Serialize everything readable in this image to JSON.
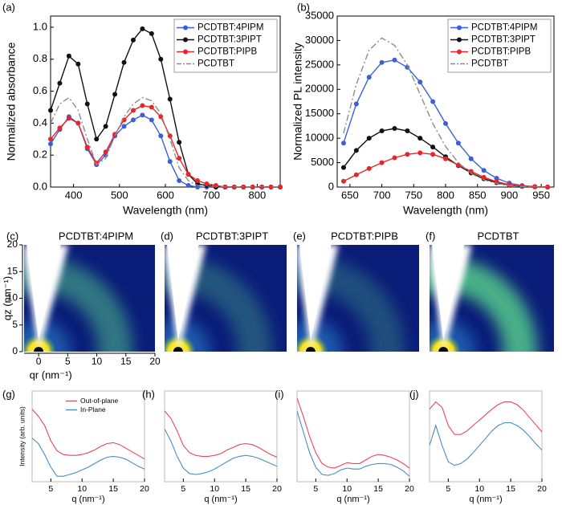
{
  "chart_data": [
    {
      "type": "line",
      "panel_label": "(a)",
      "x_label": "Wavelength (nm)",
      "y_label": "Normalized absorbance",
      "x": [
        350,
        370,
        390,
        410,
        430,
        450,
        470,
        490,
        510,
        530,
        550,
        570,
        590,
        610,
        630,
        650,
        670,
        690,
        710,
        730,
        750,
        770,
        790,
        810,
        830,
        850
      ],
      "xlim": [
        350,
        850
      ],
      "ylim": [
        0,
        1.07
      ],
      "xticks": [
        400,
        500,
        600,
        700,
        800
      ],
      "yticks": [
        {
          "value": 0,
          "label": "0.0"
        },
        {
          "value": 0.2,
          "label": "0.2"
        },
        {
          "value": 0.4,
          "label": "0.4"
        },
        {
          "value": 0.6,
          "label": "0.6"
        },
        {
          "value": 0.8,
          "label": "0.8"
        },
        {
          "value": 1,
          "label": "1.0"
        }
      ],
      "legend": "upper right",
      "series": [
        {
          "name": "PCDTBT:4PIPM",
          "color": "#3a5fd9",
          "marker": "circle",
          "values": [
            0.27,
            0.36,
            0.44,
            0.4,
            0.24,
            0.14,
            0.2,
            0.32,
            0.38,
            0.42,
            0.45,
            0.42,
            0.32,
            0.16,
            0.04,
            0.01,
            0,
            0,
            0,
            0,
            0,
            0,
            0,
            0,
            0,
            0
          ]
        },
        {
          "name": "PCDTBT:3PIPT",
          "color": "#111111",
          "marker": "circle",
          "values": [
            0.48,
            0.65,
            0.82,
            0.77,
            0.52,
            0.3,
            0.38,
            0.58,
            0.78,
            0.92,
            0.99,
            0.96,
            0.8,
            0.55,
            0.28,
            0.08,
            0.02,
            0.01,
            0,
            0,
            0,
            0,
            0,
            0,
            0,
            0
          ]
        },
        {
          "name": "PCDTBT:PIPB",
          "color": "#e8262a",
          "marker": "circle",
          "values": [
            0.3,
            0.37,
            0.43,
            0.4,
            0.25,
            0.15,
            0.22,
            0.33,
            0.42,
            0.48,
            0.51,
            0.5,
            0.44,
            0.32,
            0.18,
            0.08,
            0.04,
            0.02,
            0.01,
            0,
            0,
            0,
            0,
            0,
            0,
            0
          ]
        },
        {
          "name": "PCDTBT",
          "color": "#8c8c8c",
          "marker": "none",
          "line_style": "dashdot",
          "values": [
            0.4,
            0.52,
            0.56,
            0.48,
            0.3,
            0.14,
            0.18,
            0.32,
            0.44,
            0.52,
            0.56,
            0.54,
            0.46,
            0.3,
            0.12,
            0.04,
            0.01,
            0,
            0,
            0,
            0,
            0,
            0,
            0,
            0,
            0
          ]
        }
      ]
    },
    {
      "type": "line",
      "panel_label": "(b)",
      "x_label": "Wavelength (nm)",
      "y_label": "Normalized PL intensity",
      "x": [
        640,
        660,
        680,
        700,
        720,
        740,
        760,
        780,
        800,
        820,
        840,
        860,
        880,
        900,
        920,
        940,
        960
      ],
      "xlim": [
        630,
        970
      ],
      "ylim": [
        0,
        35000
      ],
      "xticks": [
        650,
        700,
        750,
        800,
        850,
        900,
        950
      ],
      "yticks": [
        0,
        5000,
        10000,
        15000,
        20000,
        25000,
        30000,
        35000
      ],
      "legend": "upper right",
      "series": [
        {
          "name": "PCDTBT:4PIPM",
          "color": "#3a5fd9",
          "marker": "circle",
          "values": [
            9000,
            17000,
            22500,
            25500,
            26000,
            24500,
            21500,
            17500,
            13000,
            9000,
            5800,
            3400,
            1800,
            800,
            300,
            100,
            0
          ]
        },
        {
          "name": "PCDTBT:3PIPT",
          "color": "#111111",
          "marker": "circle",
          "values": [
            4000,
            7500,
            10000,
            11500,
            12000,
            11500,
            10000,
            8200,
            6200,
            4400,
            2900,
            1700,
            900,
            400,
            150,
            50,
            0
          ]
        },
        {
          "name": "PCDTBT:PIPB",
          "color": "#e8262a",
          "marker": "circle",
          "values": [
            1200,
            2500,
            3800,
            5000,
            6000,
            6700,
            7000,
            6700,
            5800,
            4500,
            3200,
            2000,
            1100,
            500,
            200,
            50,
            0
          ]
        },
        {
          "name": "PCDTBT",
          "color": "#8c8c8c",
          "marker": "none",
          "line_style": "dashdot",
          "values": [
            11000,
            21000,
            28000,
            30500,
            29000,
            25000,
            19000,
            13000,
            8300,
            5000,
            2800,
            1500,
            700,
            300,
            100,
            0,
            0
          ]
        }
      ]
    },
    {
      "type": "heatmap",
      "panel_label": "(c)",
      "title": "PCDTBT:4PIPM",
      "x_label": "qr (nm⁻¹)",
      "y_label": "qz (nm⁻¹)",
      "xlim": [
        -2.5,
        20
      ],
      "ylim": [
        0,
        20
      ],
      "xticks": [
        0,
        5,
        10,
        15,
        20
      ],
      "yticks": [
        0,
        5,
        10,
        15,
        20
      ]
    },
    {
      "type": "heatmap",
      "panel_label": "(d)",
      "title": "PCDTBT:3PIPT"
    },
    {
      "type": "heatmap",
      "panel_label": "(e)",
      "title": "PCDTBT:PIPB"
    },
    {
      "type": "heatmap",
      "panel_label": "(f)",
      "title": "PCDTBT"
    },
    {
      "type": "line",
      "panel_label": "(g)",
      "x_label": "q (nm⁻¹)",
      "y_label": "Intensity (arb. units)",
      "x": [
        2,
        3,
        4,
        5,
        6,
        7,
        8,
        9,
        10,
        11,
        12,
        13,
        14,
        15,
        16,
        17,
        18,
        19,
        20
      ],
      "xlim": [
        2,
        20
      ],
      "ylim": [
        0,
        1
      ],
      "xticks": [
        5,
        10,
        15,
        20
      ],
      "legend": "upper center",
      "series": [
        {
          "name": "Out-of-plane",
          "color": "#e8455e",
          "values": [
            0.8,
            0.72,
            0.62,
            0.45,
            0.34,
            0.3,
            0.29,
            0.29,
            0.3,
            0.32,
            0.35,
            0.39,
            0.42,
            0.43,
            0.41,
            0.37,
            0.33,
            0.29,
            0.25
          ]
        },
        {
          "name": "In-Plane",
          "color": "#4a8cc4",
          "values": [
            0.48,
            0.42,
            0.3,
            0.16,
            0.06,
            0.06,
            0.08,
            0.1,
            0.13,
            0.16,
            0.2,
            0.24,
            0.27,
            0.28,
            0.27,
            0.25,
            0.21,
            0.17,
            0.14
          ]
        }
      ]
    },
    {
      "type": "line",
      "panel_label": "(h)",
      "x_label": "q (nm⁻¹)",
      "x": [
        2,
        3,
        4,
        5,
        6,
        7,
        8,
        9,
        10,
        11,
        12,
        13,
        14,
        15,
        16,
        17,
        18,
        19,
        20
      ],
      "xlim": [
        2,
        20
      ],
      "ylim": [
        0,
        1
      ],
      "xticks": [
        5,
        10,
        15,
        20
      ],
      "series": [
        {
          "color": "#e8455e",
          "values": [
            0.78,
            0.7,
            0.56,
            0.4,
            0.32,
            0.29,
            0.28,
            0.28,
            0.29,
            0.31,
            0.35,
            0.38,
            0.41,
            0.42,
            0.41,
            0.38,
            0.34,
            0.3,
            0.27
          ]
        },
        {
          "color": "#4a8cc4",
          "values": [
            0.58,
            0.45,
            0.28,
            0.15,
            0.09,
            0.08,
            0.09,
            0.11,
            0.14,
            0.18,
            0.22,
            0.26,
            0.28,
            0.29,
            0.28,
            0.26,
            0.23,
            0.2,
            0.17
          ]
        }
      ]
    },
    {
      "type": "line",
      "panel_label": "(i)",
      "x_label": "q (nm⁻¹)",
      "x": [
        2,
        3,
        4,
        5,
        6,
        7,
        8,
        9,
        10,
        11,
        12,
        13,
        14,
        15,
        16,
        17,
        18,
        19,
        20
      ],
      "xlim": [
        2,
        20
      ],
      "ylim": [
        0,
        1
      ],
      "xticks": [
        5,
        10,
        15,
        20
      ],
      "series": [
        {
          "color": "#e8455e",
          "values": [
            0.92,
            0.72,
            0.5,
            0.32,
            0.2,
            0.16,
            0.15,
            0.18,
            0.21,
            0.2,
            0.2,
            0.24,
            0.28,
            0.3,
            0.29,
            0.27,
            0.24,
            0.2,
            0.15
          ]
        },
        {
          "color": "#4a8cc4",
          "values": [
            0.78,
            0.55,
            0.32,
            0.16,
            0.08,
            0.07,
            0.09,
            0.13,
            0.15,
            0.14,
            0.14,
            0.17,
            0.19,
            0.2,
            0.2,
            0.19,
            0.16,
            0.12,
            0.06
          ]
        }
      ]
    },
    {
      "type": "line",
      "panel_label": "(j)",
      "x_label": "q (nm⁻¹)",
      "x": [
        2,
        3,
        4,
        5,
        6,
        7,
        8,
        9,
        10,
        11,
        12,
        13,
        14,
        15,
        16,
        17,
        18,
        19,
        20
      ],
      "xlim": [
        2,
        20
      ],
      "ylim": [
        0,
        1
      ],
      "xticks": [
        5,
        10,
        15,
        20
      ],
      "series": [
        {
          "color": "#e8455e",
          "values": [
            0.8,
            0.88,
            0.82,
            0.62,
            0.52,
            0.52,
            0.56,
            0.62,
            0.68,
            0.74,
            0.8,
            0.85,
            0.88,
            0.88,
            0.85,
            0.79,
            0.71,
            0.63,
            0.55
          ]
        },
        {
          "color": "#4a8cc4",
          "values": [
            0.4,
            0.62,
            0.4,
            0.22,
            0.18,
            0.2,
            0.25,
            0.32,
            0.4,
            0.48,
            0.56,
            0.62,
            0.65,
            0.65,
            0.62,
            0.57,
            0.5,
            0.42,
            0.35
          ]
        }
      ]
    }
  ]
}
